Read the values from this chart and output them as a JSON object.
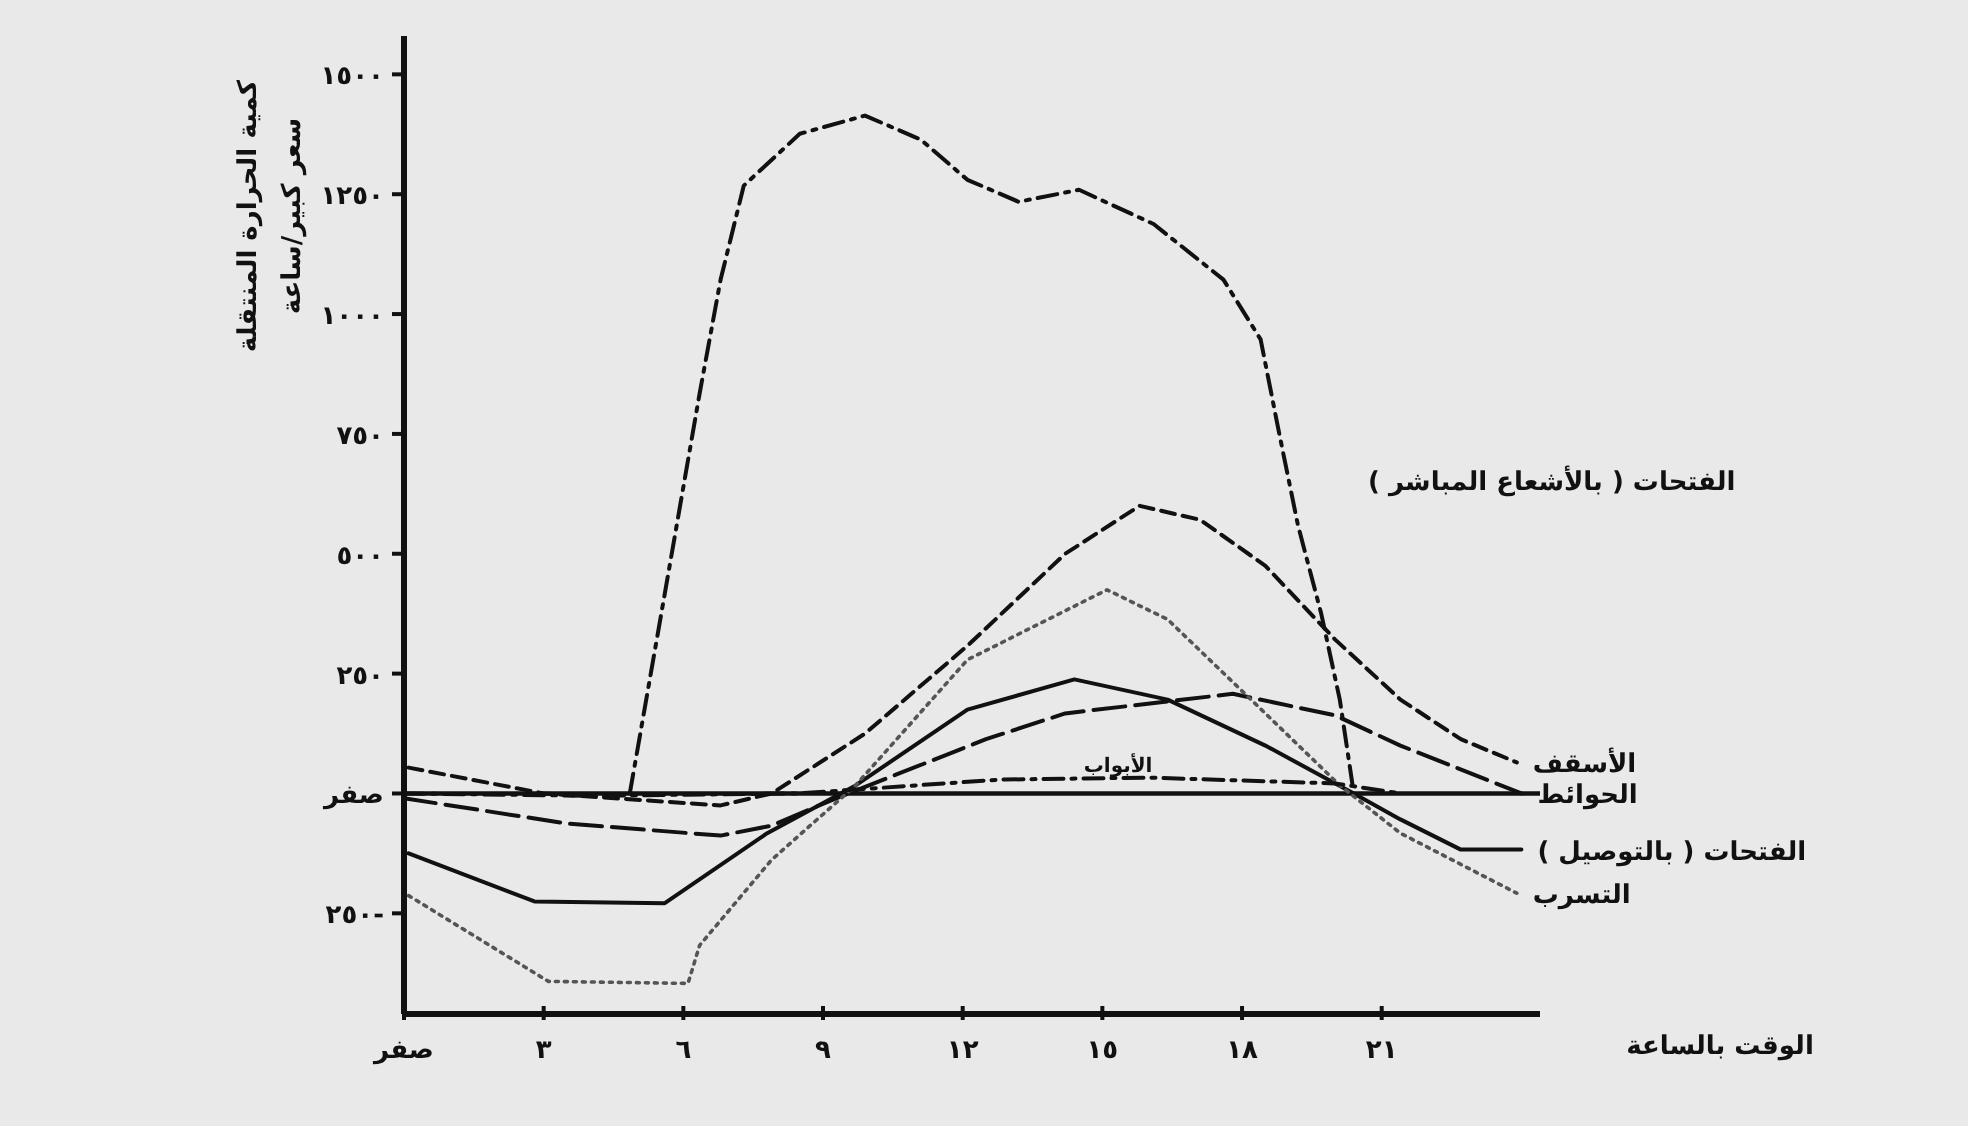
{
  "chart_data": {
    "type": "line",
    "xlabel": "الوقت بالساعة",
    "ylabel": "كمية الحرارة المنتقلة\nسعر كبير/ساعة",
    "xlim": [
      0,
      24.4
    ],
    "ylim": [
      -460,
      1580
    ],
    "xticks": [
      {
        "value": 0,
        "label": "صفر"
      },
      {
        "value": 3,
        "label": "٣"
      },
      {
        "value": 6,
        "label": "٦"
      },
      {
        "value": 9,
        "label": "٩"
      },
      {
        "value": 12,
        "label": "١٢"
      },
      {
        "value": 15,
        "label": "١٥"
      },
      {
        "value": 18,
        "label": "١٨"
      },
      {
        "value": 21,
        "label": "٢١"
      }
    ],
    "yticks": [
      {
        "value": -250,
        "label": "٢٥٠-"
      },
      {
        "value": 0,
        "label": "صفر"
      },
      {
        "value": 250,
        "label": "٢٥٠"
      },
      {
        "value": 500,
        "label": "٥٠٠"
      },
      {
        "value": 750,
        "label": "٧٥٠"
      },
      {
        "value": 1000,
        "label": "١٠٠٠"
      },
      {
        "value": 1250,
        "label": "١٢٥٠"
      },
      {
        "value": 1500,
        "label": "١٥٠٠"
      }
    ],
    "grid": false,
    "marker": "none",
    "ref_lines": [
      {
        "axis": "y",
        "value": 0,
        "color": "#111111",
        "line_style": "solid"
      }
    ],
    "series": [
      {
        "color": "#111111",
        "line_style": "dashdot",
        "x": [
          4.85,
          5.6,
          6.35,
          6.8,
          7.3,
          8.5,
          9.9,
          11.1,
          12.1,
          13.2,
          14.5,
          16.1,
          17.6,
          18.4,
          18.8,
          19.2,
          19.7,
          20.1,
          20.4
        ],
        "values": [
          0,
          417,
          834,
          1072,
          1268,
          1376,
          1414,
          1364,
          1280,
          1234,
          1259,
          1188,
          1072,
          947,
          751,
          559,
          375,
          196,
          0
        ]
      },
      {
        "name": "الأسقف",
        "color": "#111111",
        "line_style": "dashed",
        "x": [
          0.1,
          3,
          6.8,
          7.9,
          9.9,
          12.1,
          14.2,
          15.8,
          17.1,
          18.5,
          20,
          21.4,
          22.7,
          23.9
        ],
        "values": [
          54,
          0,
          -25,
          0,
          125,
          308,
          500,
          600,
          571,
          475,
          321,
          196,
          113,
          65
        ]
      },
      {
        "name": "الحوائط",
        "color": "#111111",
        "line_style": "longdash",
        "x": [
          0,
          3.5,
          6.8,
          7.9,
          9.2,
          12.5,
          14.2,
          17.8,
          20,
          21.4,
          24
        ],
        "values": [
          -10,
          -63,
          -88,
          -67,
          -13,
          113,
          167,
          208,
          163,
          100,
          0
        ]
      },
      {
        "name": "الفتحات ( بالتوصيل )",
        "color": "#111111",
        "line_style": "solid",
        "x": [
          0.1,
          2.8,
          5.6,
          7.8,
          9.7,
          12.1,
          14.4,
          16.4,
          18.5,
          20.4,
          21.4,
          22.7,
          24
        ],
        "values": [
          -125,
          -225,
          -229,
          -83,
          17,
          175,
          238,
          196,
          100,
          0,
          -54,
          -117,
          -117
        ]
      },
      {
        "name": "التسرب",
        "color": "#555555",
        "line_style": "dotted",
        "x": [
          0.1,
          3.1,
          6.1,
          6.35,
          7.9,
          9.7,
          12.1,
          15.1,
          16.4,
          18.5,
          20.1,
          21.4,
          23.9
        ],
        "values": [
          -213,
          -392,
          -396,
          -317,
          -138,
          17,
          279,
          425,
          363,
          167,
          17,
          -83,
          -208
        ]
      },
      {
        "color": "#111111",
        "line_style": "dashdot",
        "x": [
          0,
          4,
          8.5,
          10,
          12.8,
          16,
          20,
          21.4
        ],
        "values": [
          0,
          -5,
          0,
          10,
          29,
          33,
          21,
          0
        ]
      }
    ],
    "annotations": [
      "الفتحات ( بالأشعاع المباشر )",
      {
        "text": "الأبواب",
        "x": 14.6,
        "y": 45
      }
    ]
  }
}
